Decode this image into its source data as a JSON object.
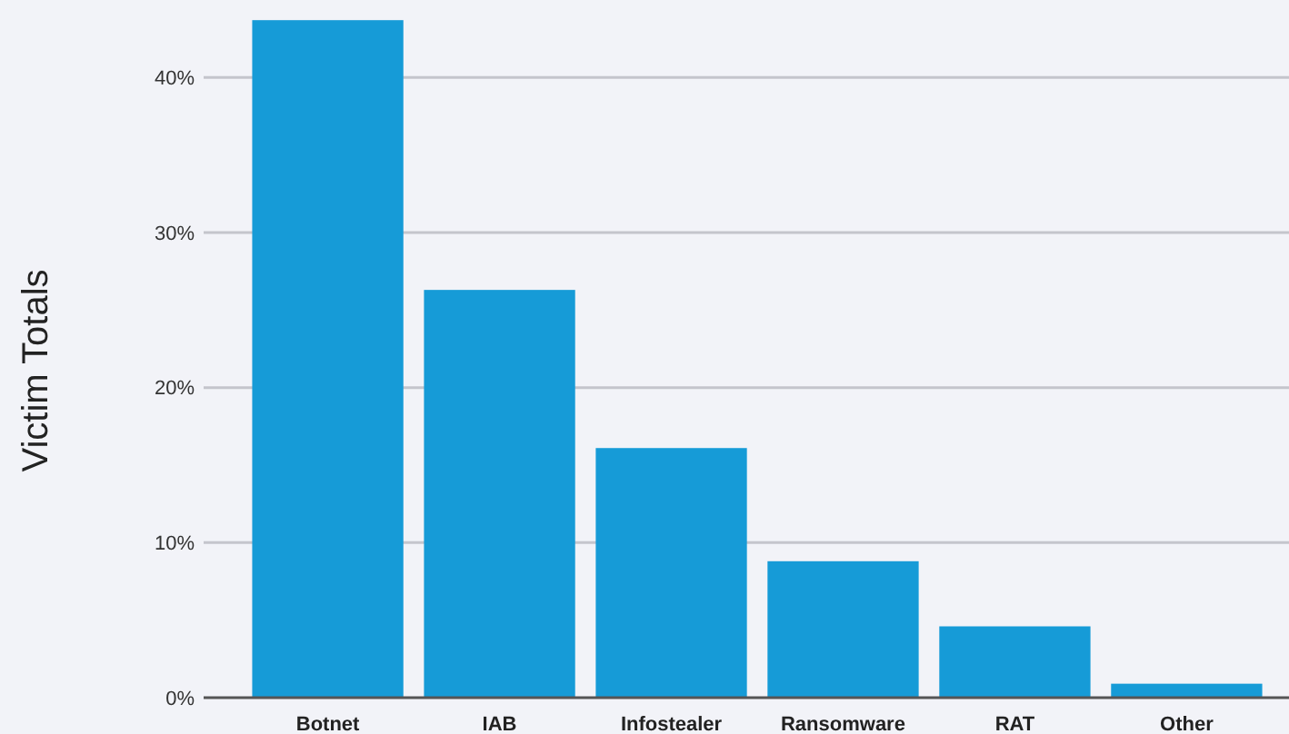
{
  "chart_data": {
    "type": "bar",
    "ylabel": "Victim Totals",
    "categories": [
      "Botnet",
      "IAB",
      "Infostealer",
      "Ransomware",
      "RAT",
      "Other"
    ],
    "values": [
      43.7,
      26.3,
      16.1,
      8.8,
      4.6,
      0.9
    ],
    "color": "#169bd7",
    "ylim": [
      0,
      45
    ],
    "yticks": [
      {
        "value": 0,
        "label": "0%"
      },
      {
        "value": 10,
        "label": "10%"
      },
      {
        "value": 20,
        "label": "20%"
      },
      {
        "value": 30,
        "label": "30%"
      },
      {
        "value": 40,
        "label": "40%"
      }
    ],
    "grid": "y"
  }
}
